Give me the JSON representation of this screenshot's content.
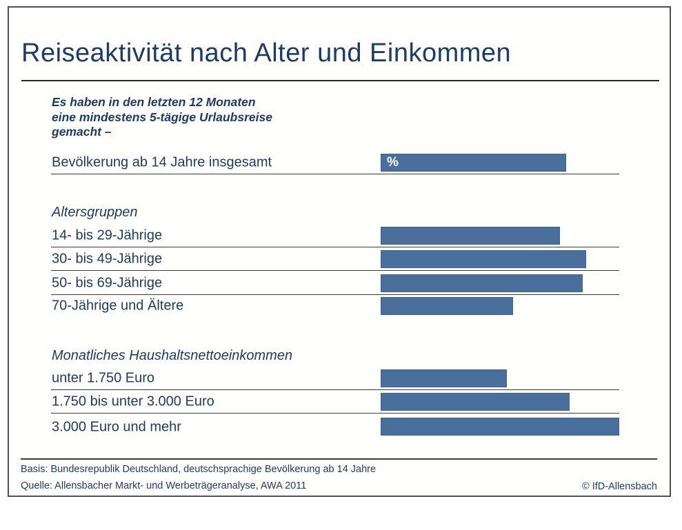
{
  "title": "Reiseaktivität nach Alter und Einkommen",
  "subtitle": "Es haben in den letzten 12 Monaten\neine mindestens 5-tägige Urlaubsreise\ngemacht –",
  "chart_data": {
    "type": "bar",
    "orientation": "horizontal",
    "value_unit": "%",
    "xlim": [
      0,
      72
    ],
    "title": "Reiseaktivität nach Alter und Einkommen",
    "subtitle": "Es haben in den letzten 12 Monaten eine mindestens 5-tägige Urlaubsreise gemacht –",
    "groups": [
      {
        "header": "",
        "rows": [
          {
            "label": "Bevölkerung ab 14 Jahre insgesamt",
            "value": 56,
            "bar_label": "%"
          }
        ]
      },
      {
        "header": "Altersgruppen",
        "rows": [
          {
            "label": "14- bis 29-Jährige",
            "value": 54
          },
          {
            "label": "30- bis 49-Jährige",
            "value": 62
          },
          {
            "label": "50- bis 69-Jährige",
            "value": 61
          },
          {
            "label": "70-Jährige und Ältere",
            "value": 40
          }
        ]
      },
      {
        "header": "Monatliches Haushaltsnettoeinkommen",
        "rows": [
          {
            "label": "unter 1.750 Euro",
            "value": 38
          },
          {
            "label": "1.750 bis unter 3.000 Euro",
            "value": 57
          },
          {
            "label": "3.000 Euro und mehr",
            "value": 72
          }
        ]
      }
    ]
  },
  "footer": {
    "basis": "Basis: Bundesrepublik Deutschland, deutschsprachige Bevölkerung ab 14 Jahre",
    "quelle": "Quelle: Allensbacher Markt- und Werbeträgeranalyse, AWA 2011",
    "copyright": "© IfD-Allensbach"
  },
  "colors": {
    "text_navy": "#1E3A66",
    "bar_fill": "#4A6F9D",
    "bar_border": "#3F6190",
    "rule": "#3A3A3A"
  }
}
